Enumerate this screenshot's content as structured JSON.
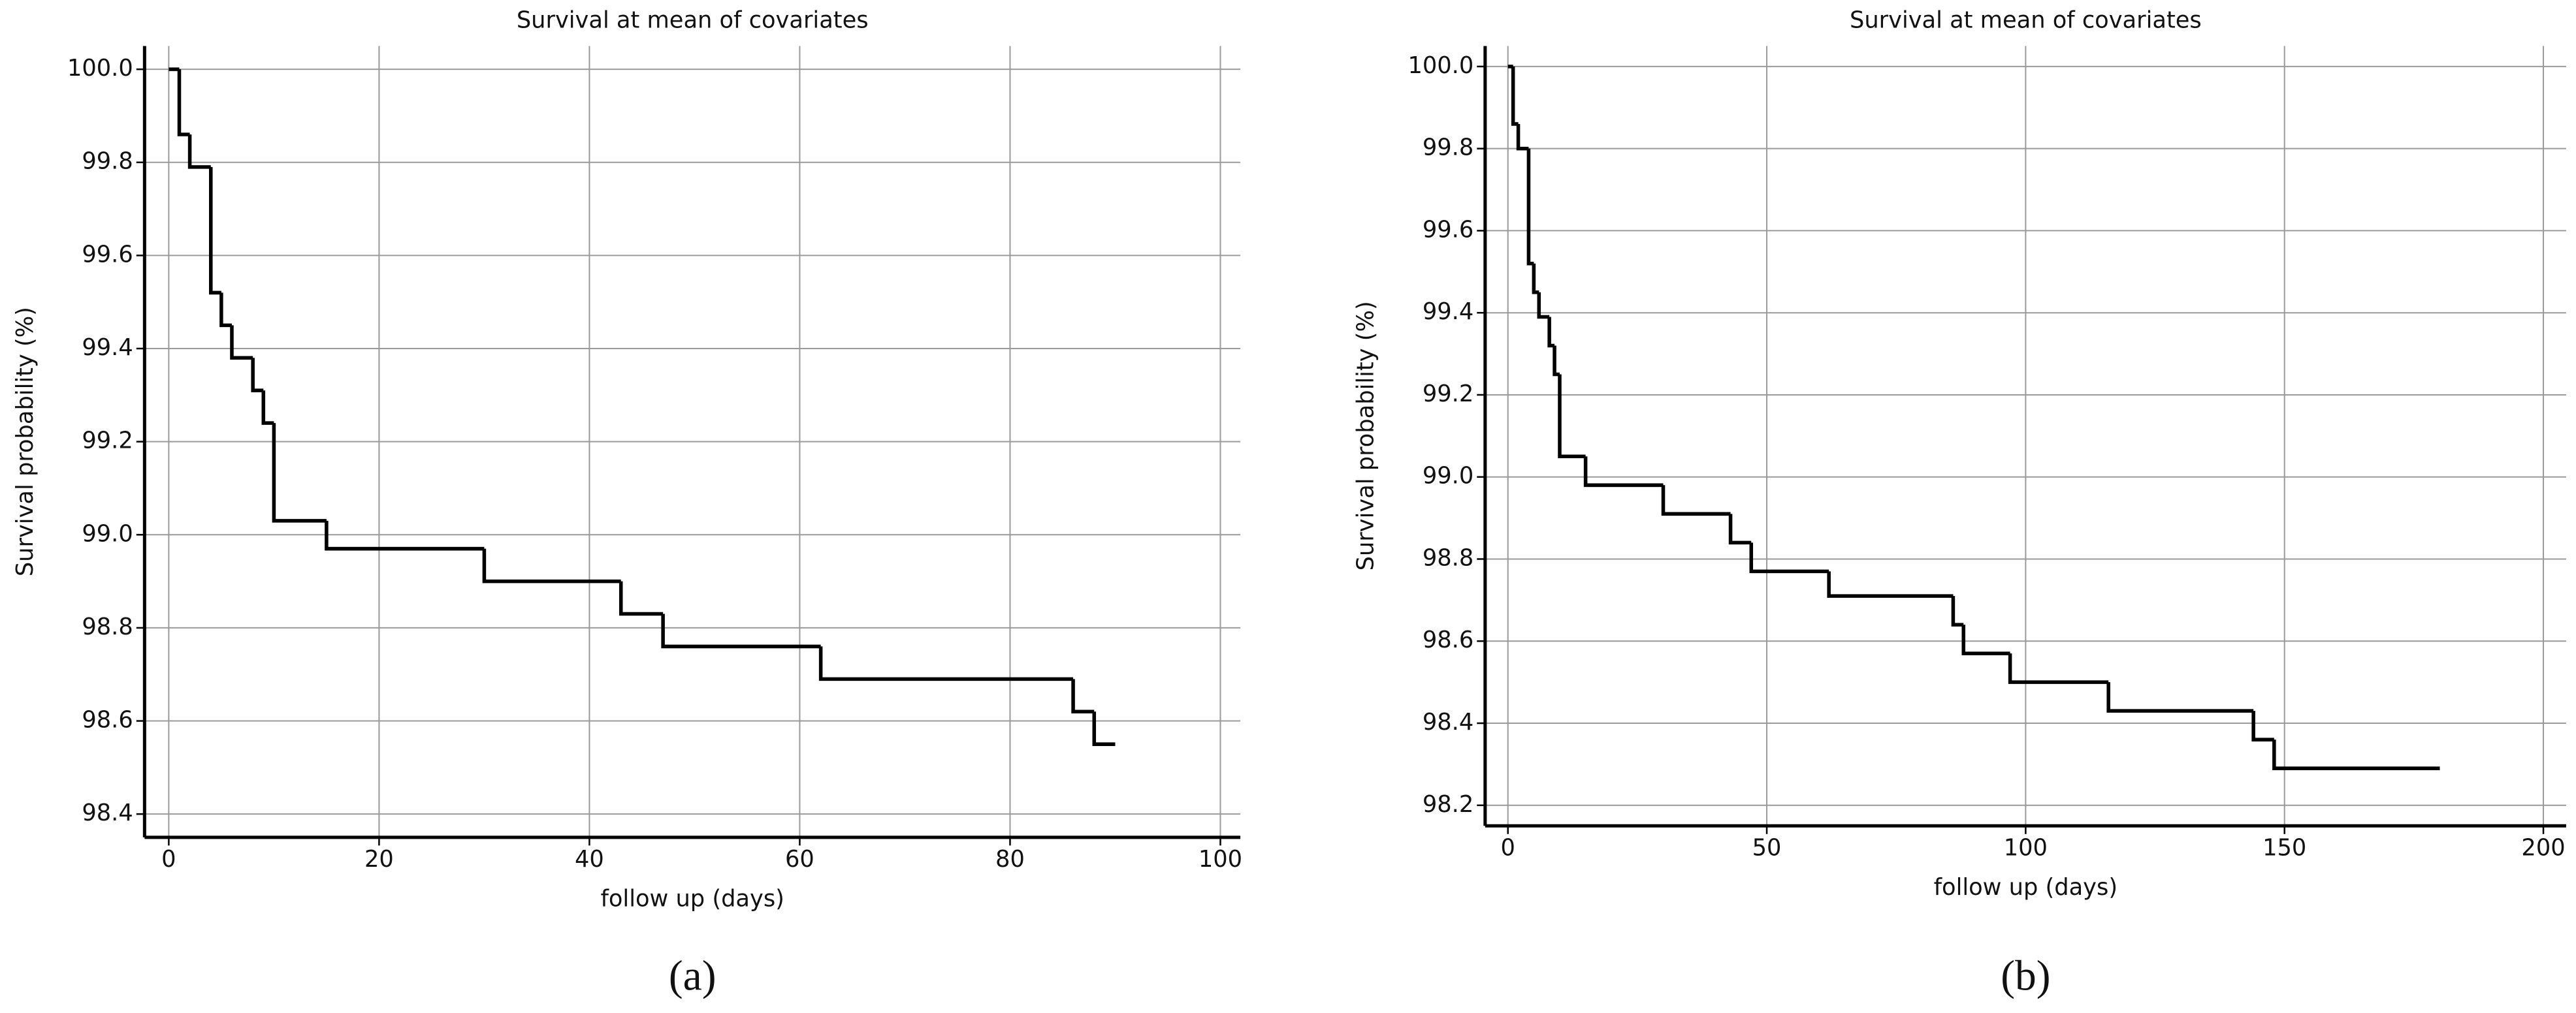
{
  "chart_data": [
    {
      "type": "step",
      "title": "Survival at mean of covariates",
      "x_label": "follow up (days)",
      "y_label": "Survival probability (%)",
      "caption": "(a)",
      "x": [
        0,
        1,
        2,
        4,
        5,
        6,
        8,
        9,
        10,
        15,
        30,
        43,
        47,
        62,
        86,
        88,
        90
      ],
      "values": [
        100,
        99.86,
        99.79,
        99.52,
        99.45,
        99.38,
        99.31,
        99.24,
        99.03,
        98.97,
        98.9,
        98.83,
        98.76,
        98.69,
        98.62,
        98.55,
        98.55
      ],
      "color": "#000000",
      "grid": true,
      "xlim": [
        -2.3,
        101.9
      ],
      "xticks": [
        0,
        20,
        40,
        60,
        80,
        100
      ],
      "ylim": [
        98.35,
        100.05
      ],
      "yticks": [
        {
          "value": 98.4,
          "label": "98.4"
        },
        {
          "value": 98.6,
          "label": "98.6"
        },
        {
          "value": 98.8,
          "label": "98.8"
        },
        {
          "value": 99.0,
          "label": "99.0"
        },
        {
          "value": 99.2,
          "label": "99.2"
        },
        {
          "value": 99.4,
          "label": "99.4"
        },
        {
          "value": 99.6,
          "label": "99.6"
        },
        {
          "value": 99.8,
          "label": "99.8"
        },
        {
          "value": 100.0,
          "label": "100.0"
        }
      ]
    },
    {
      "type": "step",
      "title": "Survival at mean of covariates",
      "x_label": "follow up (days)",
      "y_label": "Survival probability (%)",
      "caption": "(b)",
      "x": [
        0,
        1,
        2,
        4,
        5,
        6,
        8,
        9,
        10,
        15,
        30,
        43,
        47,
        62,
        86,
        88,
        97,
        116,
        144,
        148,
        180
      ],
      "values": [
        100,
        99.86,
        99.8,
        99.52,
        99.45,
        99.39,
        99.32,
        99.25,
        99.05,
        98.98,
        98.91,
        98.84,
        98.77,
        98.71,
        98.64,
        98.57,
        98.5,
        98.43,
        98.36,
        98.29,
        98.29
      ],
      "color": "#000000",
      "grid": true,
      "xlim": [
        -4.4,
        204.4
      ],
      "xticks": [
        0,
        50,
        100,
        150,
        200
      ],
      "ylim": [
        98.15,
        100.05
      ],
      "yticks": [
        {
          "value": 98.2,
          "label": "98.2"
        },
        {
          "value": 98.4,
          "label": "98.4"
        },
        {
          "value": 98.6,
          "label": "98.6"
        },
        {
          "value": 98.8,
          "label": "98.8"
        },
        {
          "value": 99.0,
          "label": "99.0"
        },
        {
          "value": 99.2,
          "label": "99.2"
        },
        {
          "value": 99.4,
          "label": "99.4"
        },
        {
          "value": 99.6,
          "label": "99.6"
        },
        {
          "value": 99.8,
          "label": "99.8"
        },
        {
          "value": 100.0,
          "label": "100.0"
        }
      ]
    }
  ]
}
